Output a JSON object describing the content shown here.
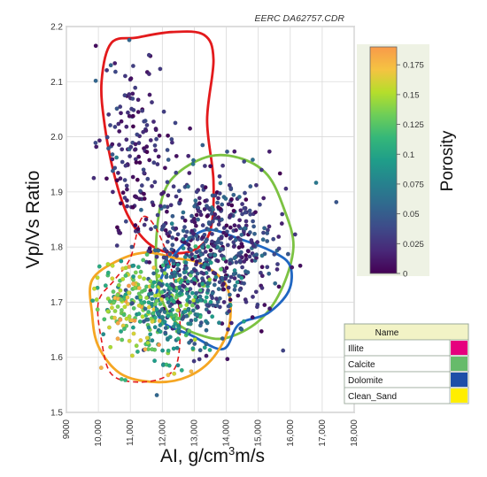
{
  "chart_data": {
    "type": "scatter",
    "annotation": "EERC DA62757.CDR",
    "xlabel_main": "AI, g/cm",
    "xlabel_sup": "3",
    "xlabel_tail": "m/s",
    "ylabel": "Vp/Vs Ratio",
    "xlim": [
      9000,
      18000
    ],
    "ylim": [
      1.5,
      2.2
    ],
    "x_ticks": [
      "9000",
      "10,000",
      "11,000",
      "12,000",
      "13,000",
      "14,000",
      "15,000",
      "16,000",
      "17,000",
      "18,000"
    ],
    "y_ticks": [
      "1.5",
      "1.6",
      "1.7",
      "1.8",
      "1.9",
      "2.0",
      "2.1",
      "2.2"
    ],
    "grid": true,
    "colorbar": {
      "label": "Porosity",
      "range": [
        0,
        0.19
      ],
      "ticks": [
        "0",
        "0.025",
        "0.05",
        "0.075",
        "0.1",
        "0.125",
        "0.15",
        "0.175"
      ],
      "tick_values": [
        0,
        0.025,
        0.05,
        0.075,
        0.1,
        0.125,
        0.15,
        0.175
      ],
      "colormap": [
        "#440154",
        "#482878",
        "#3e4a89",
        "#31688e",
        "#26828e",
        "#1f9e89",
        "#35b779",
        "#6ece58",
        "#b5de2b",
        "#f5c342",
        "#f89a4a"
      ]
    },
    "legend": {
      "header": "Name",
      "entries": [
        {
          "name": "Illite",
          "color": "#e6007e"
        },
        {
          "name": "Calcite",
          "color": "#66bb6a"
        },
        {
          "name": "Dolomite",
          "color": "#1e4fa8"
        },
        {
          "name": "Clean_Sand",
          "color": "#ffee00"
        }
      ]
    },
    "outlines": [
      {
        "label": "red",
        "color": "#e31a1c",
        "dash": false,
        "points": [
          [
            10400,
            2.17
          ],
          [
            11200,
            2.18
          ],
          [
            12300,
            2.19
          ],
          [
            13300,
            2.185
          ],
          [
            13600,
            2.14
          ],
          [
            13400,
            2.03
          ],
          [
            13600,
            1.92
          ],
          [
            13500,
            1.83
          ],
          [
            13000,
            1.795
          ],
          [
            12200,
            1.79
          ],
          [
            11500,
            1.81
          ],
          [
            10900,
            1.86
          ],
          [
            10500,
            1.93
          ],
          [
            10200,
            2.02
          ],
          [
            10100,
            2.1
          ]
        ]
      },
      {
        "label": "green",
        "color": "#7cc242",
        "dash": false,
        "points": [
          [
            12000,
            1.89
          ],
          [
            12500,
            1.935
          ],
          [
            13500,
            1.965
          ],
          [
            14500,
            1.96
          ],
          [
            15300,
            1.93
          ],
          [
            15800,
            1.87
          ],
          [
            16100,
            1.8
          ],
          [
            15700,
            1.72
          ],
          [
            15000,
            1.665
          ],
          [
            14000,
            1.635
          ],
          [
            13200,
            1.64
          ],
          [
            12400,
            1.665
          ],
          [
            11900,
            1.72
          ],
          [
            11800,
            1.8
          ]
        ]
      },
      {
        "label": "blue",
        "color": "#1f66c2",
        "dash": false,
        "points": [
          [
            12300,
            1.78
          ],
          [
            13300,
            1.83
          ],
          [
            14400,
            1.815
          ],
          [
            15500,
            1.79
          ],
          [
            16000,
            1.765
          ],
          [
            15950,
            1.72
          ],
          [
            15300,
            1.68
          ],
          [
            14400,
            1.66
          ],
          [
            13900,
            1.615
          ],
          [
            12900,
            1.64
          ],
          [
            12000,
            1.665
          ],
          [
            11800,
            1.71
          ]
        ]
      },
      {
        "label": "orange",
        "color": "#f5a623",
        "dash": false,
        "points": [
          [
            9800,
            1.74
          ],
          [
            10600,
            1.775
          ],
          [
            11500,
            1.79
          ],
          [
            12400,
            1.78
          ],
          [
            13200,
            1.77
          ],
          [
            14000,
            1.73
          ],
          [
            14100,
            1.66
          ],
          [
            13600,
            1.6
          ],
          [
            12800,
            1.565
          ],
          [
            11800,
            1.555
          ],
          [
            10700,
            1.57
          ],
          [
            10000,
            1.62
          ],
          [
            9800,
            1.68
          ]
        ]
      },
      {
        "label": "red-dashed",
        "color": "#e31a1c",
        "dash": true,
        "points": [
          [
            11400,
            1.855
          ],
          [
            12000,
            1.81
          ],
          [
            12500,
            1.7
          ],
          [
            12500,
            1.6
          ],
          [
            12100,
            1.565
          ],
          [
            11200,
            1.555
          ],
          [
            10400,
            1.57
          ],
          [
            10100,
            1.63
          ],
          [
            10000,
            1.7
          ],
          [
            10500,
            1.74
          ],
          [
            11000,
            1.78
          ]
        ]
      }
    ]
  }
}
